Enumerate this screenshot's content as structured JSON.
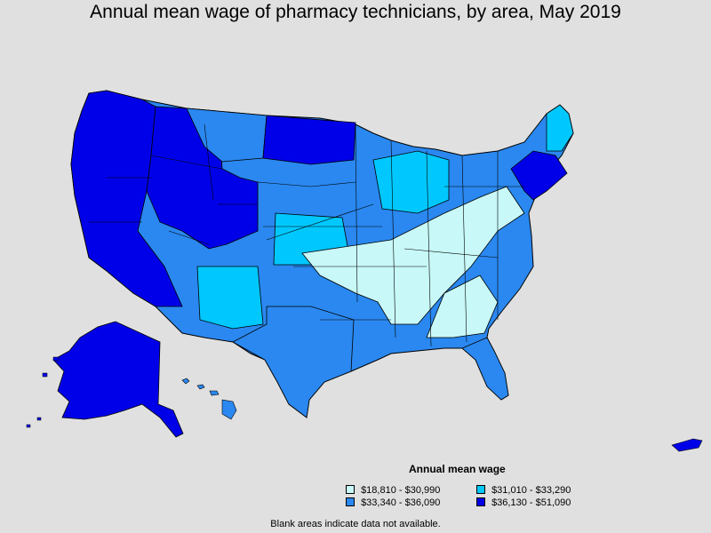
{
  "title": "Annual mean wage of pharmacy technicians, by area, May 2019",
  "legend": {
    "title": "Annual mean wage",
    "items": [
      {
        "label": "$18,810 - $30,990",
        "color": "#c8f8f8"
      },
      {
        "label": "$31,010 - $33,290",
        "color": "#00c8ff"
      },
      {
        "label": "$33,340 - $36,090",
        "color": "#2a88f0"
      },
      {
        "label": "$36,130 - $51,090",
        "color": "#0000e8"
      }
    ]
  },
  "note": "Blank areas indicate data not available.",
  "colors": {
    "background": "#e0e0e0",
    "border": "#000000",
    "tier1": "#c8f8f8",
    "tier2": "#00c8ff",
    "tier3": "#2a88f0",
    "tier4": "#0000e8"
  }
}
